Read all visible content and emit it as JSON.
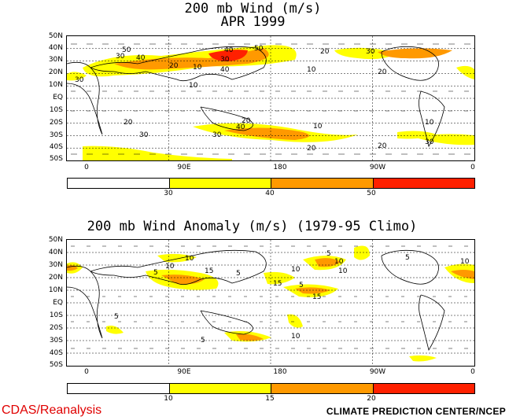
{
  "panel1": {
    "title_line1": "200 mb Wind (m/s)",
    "title_line2": "APR 1999",
    "lat_labels": [
      "50N",
      "40N",
      "30N",
      "20N",
      "10N",
      "EQ",
      "10S",
      "20S",
      "30S",
      "40S",
      "50S"
    ],
    "lon_labels": [
      "0",
      "90E",
      "180",
      "90W",
      "0"
    ],
    "colorbar_labels": [
      "30",
      "40",
      "50"
    ],
    "contour_labels": [
      "50",
      "40",
      "30",
      "20",
      "10",
      "30",
      "40",
      "50",
      "40",
      "20",
      "30",
      "20",
      "10",
      "30",
      "10",
      "20",
      "30",
      "40",
      "20",
      "10",
      "30",
      "20",
      "10",
      "20",
      "30"
    ]
  },
  "panel2": {
    "title": "200 mb Wind Anomaly (m/s) (1979-95 Climo)",
    "lat_labels": [
      "50N",
      "40N",
      "30N",
      "20N",
      "10N",
      "EQ",
      "10S",
      "20S",
      "30S",
      "40S",
      "50S"
    ],
    "lon_labels": [
      "0",
      "90E",
      "180",
      "90W",
      "0"
    ],
    "colorbar_labels": [
      "10",
      "15",
      "20"
    ],
    "contour_labels": [
      "10",
      "5",
      "15",
      "10",
      "5",
      "10",
      "5",
      "15",
      "10",
      "5",
      "10",
      "15",
      "5",
      "10",
      "5",
      "10",
      "5"
    ]
  },
  "colors": {
    "white": "#ffffff",
    "yellow": "#ffff00",
    "orange": "#ff9900",
    "red": "#ff2000",
    "dark_red": "#dd3300"
  },
  "footer": {
    "left": "CDAS/Reanalysis",
    "right": "CLIMATE PREDICTION CENTER/NCEP"
  }
}
